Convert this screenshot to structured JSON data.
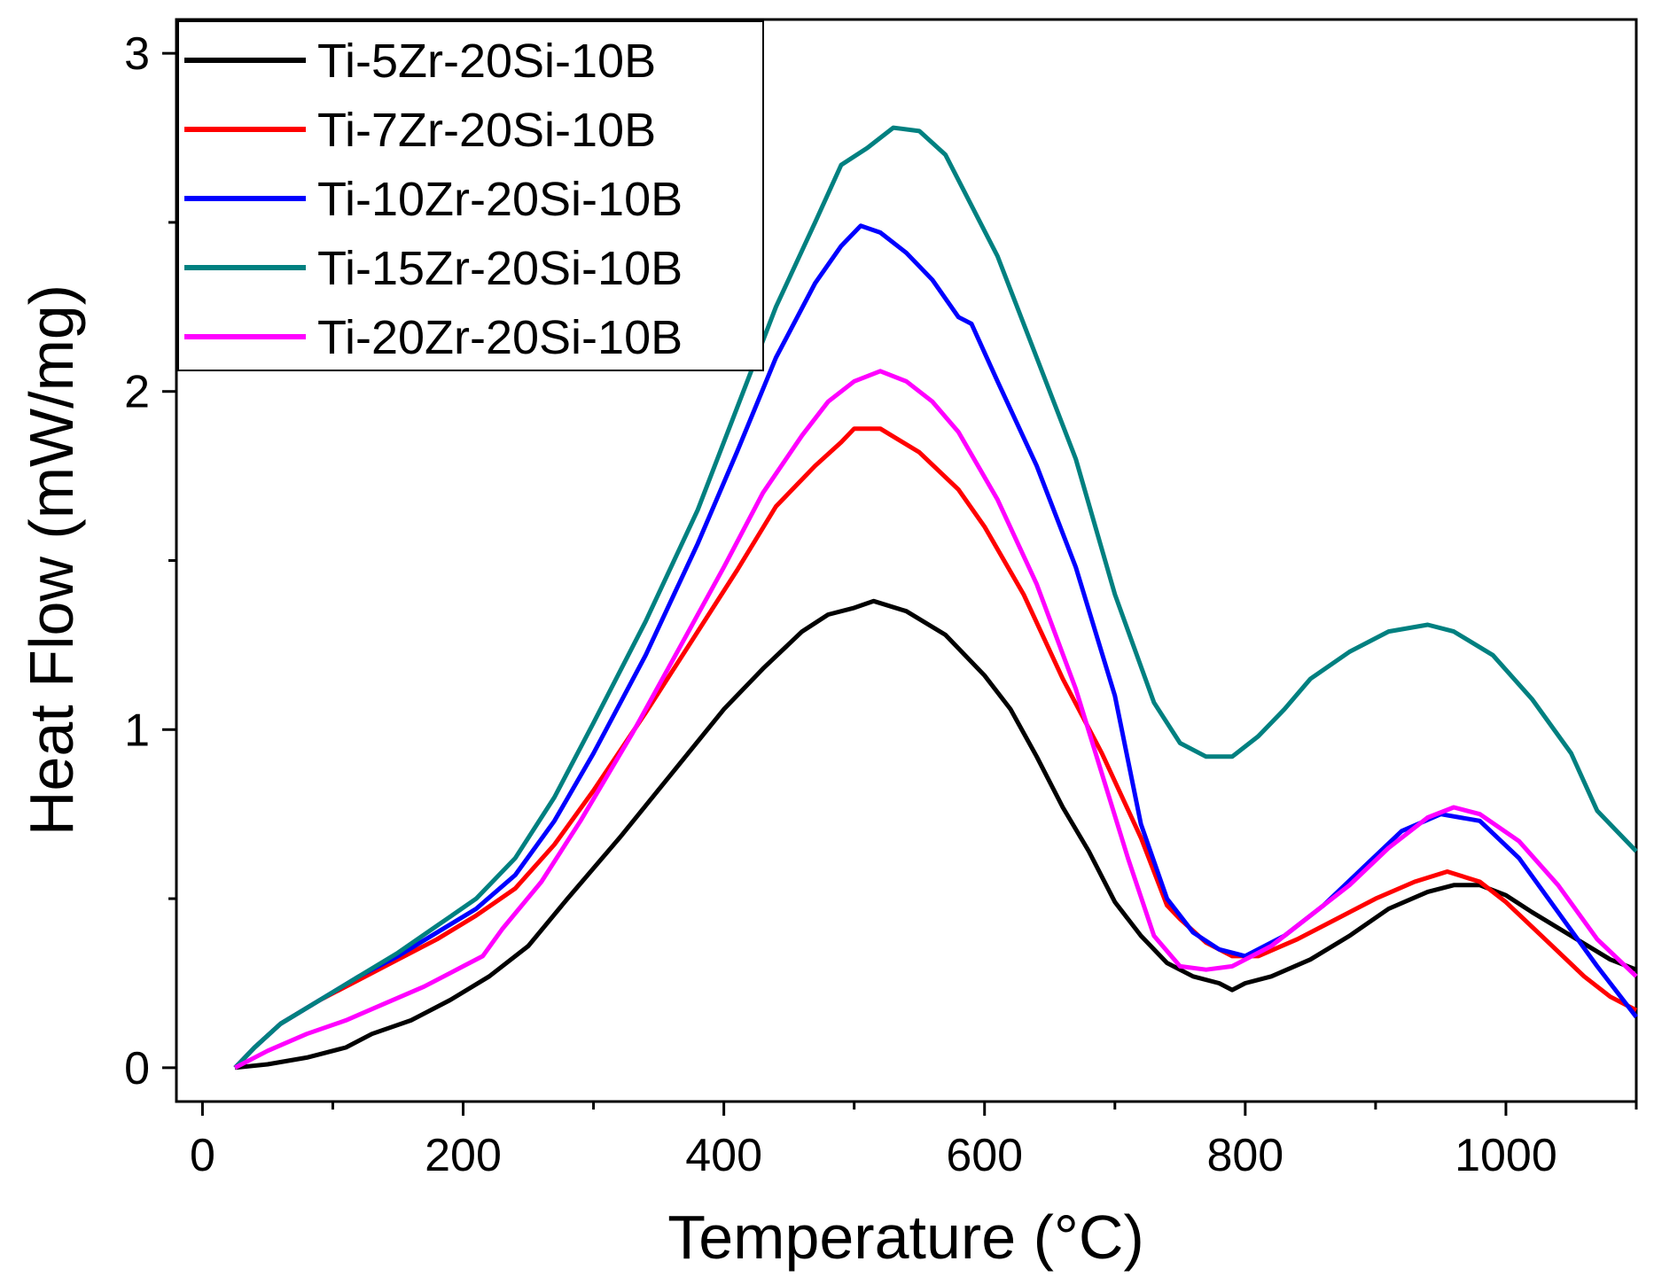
{
  "chart_data": {
    "type": "line",
    "title": "",
    "xlabel": "Temperature (°C)",
    "ylabel": "Heat Flow (mW/mg)",
    "xlim": [
      -20,
      1100
    ],
    "ylim": [
      -0.1,
      3.1
    ],
    "x_major_ticks": [
      0,
      200,
      400,
      600,
      800,
      1000
    ],
    "x_minor_ticks": [
      100,
      300,
      500,
      700,
      900,
      1100
    ],
    "y_major_ticks": [
      0,
      1,
      2,
      3
    ],
    "y_minor_ticks": [
      0.5,
      1.5,
      2.5
    ],
    "legend_position": "top-left",
    "series": [
      {
        "name": "Ti-5Zr-20Si-10B",
        "color": "#000000",
        "points": [
          [
            25,
            0
          ],
          [
            50,
            0.01
          ],
          [
            80,
            0.03
          ],
          [
            110,
            0.06
          ],
          [
            130,
            0.1
          ],
          [
            160,
            0.14
          ],
          [
            190,
            0.2
          ],
          [
            220,
            0.27
          ],
          [
            250,
            0.36
          ],
          [
            280,
            0.5
          ],
          [
            320,
            0.68
          ],
          [
            360,
            0.87
          ],
          [
            400,
            1.06
          ],
          [
            430,
            1.18
          ],
          [
            460,
            1.29
          ],
          [
            480,
            1.34
          ],
          [
            500,
            1.36
          ],
          [
            515,
            1.38
          ],
          [
            540,
            1.35
          ],
          [
            570,
            1.28
          ],
          [
            600,
            1.16
          ],
          [
            620,
            1.06
          ],
          [
            640,
            0.92
          ],
          [
            660,
            0.77
          ],
          [
            680,
            0.64
          ],
          [
            700,
            0.49
          ],
          [
            720,
            0.39
          ],
          [
            740,
            0.31
          ],
          [
            760,
            0.27
          ],
          [
            780,
            0.25
          ],
          [
            790,
            0.23
          ],
          [
            800,
            0.25
          ],
          [
            820,
            0.27
          ],
          [
            850,
            0.32
          ],
          [
            880,
            0.39
          ],
          [
            910,
            0.47
          ],
          [
            940,
            0.52
          ],
          [
            960,
            0.54
          ],
          [
            980,
            0.54
          ],
          [
            1000,
            0.51
          ],
          [
            1020,
            0.46
          ],
          [
            1050,
            0.39
          ],
          [
            1080,
            0.32
          ],
          [
            1100,
            0.29
          ]
        ]
      },
      {
        "name": "Ti-7Zr-20Si-10B",
        "color": "#ff0000",
        "points": [
          [
            25,
            0
          ],
          [
            40,
            0.06
          ],
          [
            60,
            0.13
          ],
          [
            90,
            0.2
          ],
          [
            120,
            0.26
          ],
          [
            150,
            0.32
          ],
          [
            180,
            0.38
          ],
          [
            210,
            0.45
          ],
          [
            240,
            0.53
          ],
          [
            270,
            0.66
          ],
          [
            300,
            0.82
          ],
          [
            340,
            1.05
          ],
          [
            380,
            1.29
          ],
          [
            410,
            1.47
          ],
          [
            440,
            1.66
          ],
          [
            470,
            1.78
          ],
          [
            490,
            1.85
          ],
          [
            500,
            1.89
          ],
          [
            520,
            1.89
          ],
          [
            550,
            1.82
          ],
          [
            580,
            1.71
          ],
          [
            600,
            1.6
          ],
          [
            630,
            1.4
          ],
          [
            660,
            1.15
          ],
          [
            690,
            0.93
          ],
          [
            720,
            0.68
          ],
          [
            740,
            0.48
          ],
          [
            750,
            0.44
          ],
          [
            770,
            0.37
          ],
          [
            790,
            0.33
          ],
          [
            810,
            0.33
          ],
          [
            840,
            0.38
          ],
          [
            870,
            0.44
          ],
          [
            900,
            0.5
          ],
          [
            930,
            0.55
          ],
          [
            955,
            0.58
          ],
          [
            980,
            0.55
          ],
          [
            1000,
            0.49
          ],
          [
            1030,
            0.38
          ],
          [
            1060,
            0.27
          ],
          [
            1080,
            0.21
          ],
          [
            1100,
            0.17
          ]
        ]
      },
      {
        "name": "Ti-10Zr-20Si-10B",
        "color": "#0000ff",
        "points": [
          [
            25,
            0
          ],
          [
            40,
            0.06
          ],
          [
            60,
            0.13
          ],
          [
            90,
            0.2
          ],
          [
            120,
            0.27
          ],
          [
            150,
            0.33
          ],
          [
            180,
            0.4
          ],
          [
            210,
            0.47
          ],
          [
            240,
            0.57
          ],
          [
            270,
            0.73
          ],
          [
            300,
            0.93
          ],
          [
            340,
            1.22
          ],
          [
            380,
            1.55
          ],
          [
            410,
            1.82
          ],
          [
            440,
            2.1
          ],
          [
            470,
            2.32
          ],
          [
            490,
            2.43
          ],
          [
            505,
            2.49
          ],
          [
            520,
            2.47
          ],
          [
            540,
            2.41
          ],
          [
            560,
            2.33
          ],
          [
            580,
            2.22
          ],
          [
            590,
            2.2
          ],
          [
            610,
            2.03
          ],
          [
            640,
            1.78
          ],
          [
            670,
            1.48
          ],
          [
            700,
            1.1
          ],
          [
            720,
            0.72
          ],
          [
            740,
            0.5
          ],
          [
            760,
            0.4
          ],
          [
            780,
            0.35
          ],
          [
            800,
            0.33
          ],
          [
            830,
            0.39
          ],
          [
            860,
            0.48
          ],
          [
            890,
            0.59
          ],
          [
            920,
            0.7
          ],
          [
            950,
            0.75
          ],
          [
            980,
            0.73
          ],
          [
            1010,
            0.62
          ],
          [
            1040,
            0.46
          ],
          [
            1070,
            0.3
          ],
          [
            1100,
            0.15
          ]
        ]
      },
      {
        "name": "Ti-15Zr-20Si-10B",
        "color": "#008080",
        "points": [
          [
            25,
            0
          ],
          [
            40,
            0.06
          ],
          [
            60,
            0.13
          ],
          [
            90,
            0.2
          ],
          [
            120,
            0.27
          ],
          [
            150,
            0.34
          ],
          [
            180,
            0.42
          ],
          [
            210,
            0.5
          ],
          [
            240,
            0.62
          ],
          [
            270,
            0.8
          ],
          [
            300,
            1.02
          ],
          [
            340,
            1.32
          ],
          [
            380,
            1.65
          ],
          [
            410,
            1.95
          ],
          [
            440,
            2.25
          ],
          [
            470,
            2.5
          ],
          [
            490,
            2.67
          ],
          [
            510,
            2.72
          ],
          [
            530,
            2.78
          ],
          [
            550,
            2.77
          ],
          [
            570,
            2.7
          ],
          [
            590,
            2.55
          ],
          [
            610,
            2.4
          ],
          [
            640,
            2.1
          ],
          [
            670,
            1.8
          ],
          [
            700,
            1.4
          ],
          [
            730,
            1.08
          ],
          [
            750,
            0.96
          ],
          [
            770,
            0.92
          ],
          [
            790,
            0.92
          ],
          [
            810,
            0.98
          ],
          [
            830,
            1.06
          ],
          [
            850,
            1.15
          ],
          [
            880,
            1.23
          ],
          [
            910,
            1.29
          ],
          [
            940,
            1.31
          ],
          [
            960,
            1.29
          ],
          [
            990,
            1.22
          ],
          [
            1020,
            1.09
          ],
          [
            1050,
            0.93
          ],
          [
            1070,
            0.76
          ],
          [
            1100,
            0.64
          ]
        ]
      },
      {
        "name": "Ti-20Zr-20Si-10B",
        "color": "#ff00ff",
        "points": [
          [
            25,
            0
          ],
          [
            50,
            0.05
          ],
          [
            80,
            0.1
          ],
          [
            110,
            0.14
          ],
          [
            140,
            0.19
          ],
          [
            170,
            0.24
          ],
          [
            200,
            0.3
          ],
          [
            215,
            0.33
          ],
          [
            230,
            0.41
          ],
          [
            260,
            0.55
          ],
          [
            290,
            0.73
          ],
          [
            330,
            0.99
          ],
          [
            370,
            1.27
          ],
          [
            400,
            1.48
          ],
          [
            430,
            1.7
          ],
          [
            460,
            1.87
          ],
          [
            480,
            1.97
          ],
          [
            500,
            2.03
          ],
          [
            520,
            2.06
          ],
          [
            540,
            2.03
          ],
          [
            560,
            1.97
          ],
          [
            580,
            1.88
          ],
          [
            610,
            1.68
          ],
          [
            640,
            1.43
          ],
          [
            670,
            1.12
          ],
          [
            690,
            0.87
          ],
          [
            710,
            0.62
          ],
          [
            730,
            0.39
          ],
          [
            750,
            0.3
          ],
          [
            770,
            0.29
          ],
          [
            790,
            0.3
          ],
          [
            820,
            0.36
          ],
          [
            850,
            0.45
          ],
          [
            880,
            0.54
          ],
          [
            910,
            0.65
          ],
          [
            940,
            0.74
          ],
          [
            960,
            0.77
          ],
          [
            980,
            0.75
          ],
          [
            1010,
            0.67
          ],
          [
            1040,
            0.54
          ],
          [
            1070,
            0.38
          ],
          [
            1100,
            0.27
          ]
        ]
      }
    ]
  }
}
